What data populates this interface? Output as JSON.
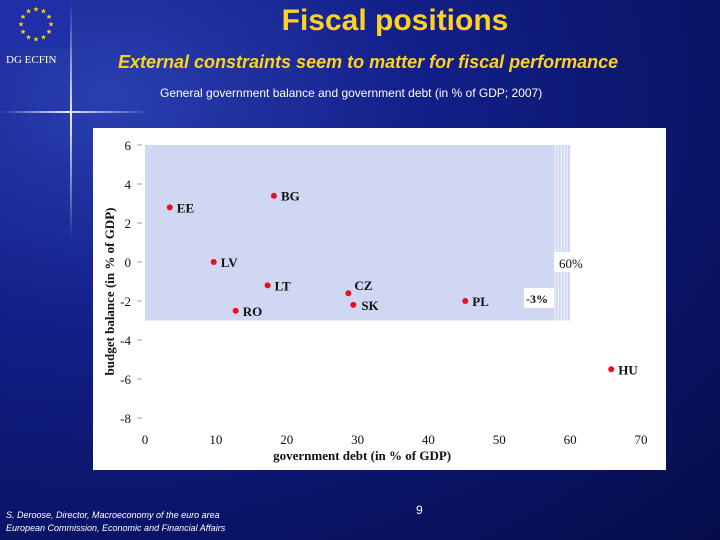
{
  "header": {
    "org": "DG ECFIN",
    "title": "Fiscal positions",
    "subtitle": "External constraints seem to matter for fiscal performance",
    "caption": "General government balance and government debt (in % of GDP; 2007)"
  },
  "colors": {
    "title": "#ffd21f",
    "background": "#0a1466",
    "marker": "#e8101a",
    "band": "#cfd7f2"
  },
  "chart_data": {
    "type": "scatter",
    "xlabel": "government debt (in % of GDP)",
    "ylabel": "budget balance (in % of GDP)",
    "xlim": [
      0,
      70
    ],
    "ylim": [
      -8,
      6
    ],
    "xticks": [
      0,
      10,
      20,
      30,
      40,
      50,
      60,
      70
    ],
    "yticks": [
      6,
      4,
      2,
      0,
      -2,
      -4,
      -6,
      -8
    ],
    "band": {
      "x": [
        0,
        60
      ],
      "y": [
        -3,
        6
      ]
    },
    "points": [
      {
        "label": "EE",
        "x": 3.5,
        "y": 2.8
      },
      {
        "label": "BG",
        "x": 18.2,
        "y": 3.4
      },
      {
        "label": "LV",
        "x": 9.7,
        "y": 0
      },
      {
        "label": "LT",
        "x": 17.3,
        "y": -1.2
      },
      {
        "label": "CZ",
        "x": 28.7,
        "y": -1.6
      },
      {
        "label": "SK",
        "x": 29.4,
        "y": -2.2
      },
      {
        "label": "RO",
        "x": 12.8,
        "y": -2.5
      },
      {
        "label": "PL",
        "x": 45.2,
        "y": -2
      },
      {
        "label": "HU",
        "x": 65.8,
        "y": -5.5
      }
    ],
    "annotations": [
      "60%",
      "-3%"
    ]
  },
  "footer": {
    "line1": "S. Deroose, Director, Macroeconomy of the euro area",
    "line2": "European Commission, Economic and Financial Affairs",
    "page": "9"
  }
}
